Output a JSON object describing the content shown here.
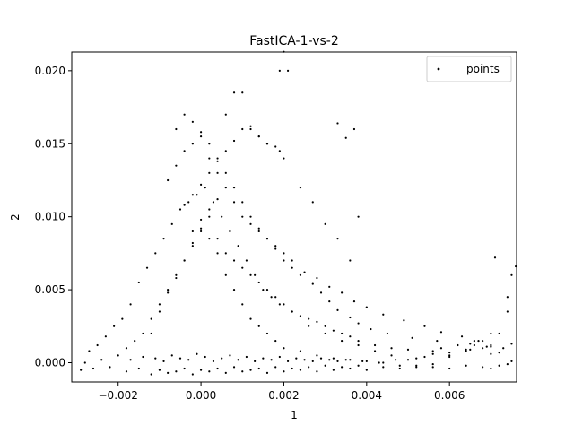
{
  "chart_data": {
    "type": "scatter",
    "title": "FastICA-1-vs-2",
    "xlabel": "1",
    "ylabel": "2",
    "xlim": [
      -0.00312,
      0.00762
    ],
    "ylim": [
      -0.00132,
      0.02128
    ],
    "xticks": [
      -0.002,
      0.0,
      0.002,
      0.004,
      0.006
    ],
    "xtick_labels": [
      "−0.002",
      "0.000",
      "0.002",
      "0.004",
      "0.006"
    ],
    "yticks": [
      0.0,
      0.005,
      0.01,
      0.015,
      0.02
    ],
    "ytick_labels": [
      "0.000",
      "0.005",
      "0.010",
      "0.015",
      "0.020"
    ],
    "legend": {
      "position": "top-right",
      "entries": [
        "points"
      ]
    },
    "grid": false,
    "marker_color": "#000000",
    "series": [
      {
        "name": "points",
        "x": [
          -0.0029,
          -0.0028,
          -0.0027,
          -0.0026,
          -0.0025,
          -0.0024,
          -0.0023,
          -0.0022,
          -0.0021,
          -0.002,
          -0.0019,
          -0.0018,
          -0.0017,
          -0.0016,
          -0.0015,
          -0.0014,
          -0.0013,
          -0.0012,
          -0.0011,
          -0.001,
          -0.0009,
          -0.0008,
          -0.0007,
          -0.0006,
          -0.0005,
          -0.0004,
          -0.0003,
          -0.0002,
          -0.0001,
          0.0,
          0.0001,
          0.0002,
          0.0003,
          0.0004,
          0.0005,
          0.0006,
          0.0007,
          0.0008,
          0.0009,
          0.001,
          0.0011,
          0.0012,
          0.0013,
          0.0014,
          0.0015,
          0.0016,
          0.0017,
          0.0018,
          0.0019,
          0.002,
          0.0022,
          0.0024,
          0.0026,
          0.0028,
          0.003,
          0.0032,
          0.0034,
          0.0036,
          0.0038,
          0.004,
          0.0042,
          0.0044,
          0.0046,
          0.0048,
          0.005,
          0.0052,
          0.0054,
          0.0056,
          0.0058,
          0.006,
          0.0062,
          0.0064,
          0.0066,
          0.0068,
          0.007,
          0.0072,
          0.0074,
          0.0075,
          -0.0018,
          -0.0015,
          -0.0012,
          -0.001,
          -0.0008,
          -0.0006,
          -0.0004,
          -0.0002,
          0.0,
          0.0002,
          0.0004,
          0.0006,
          0.0008,
          0.001,
          0.0012,
          0.0014,
          0.0016,
          0.0018,
          0.002,
          0.0022,
          0.0024,
          0.0026,
          0.0028,
          0.003,
          0.0032,
          0.0034,
          0.0036,
          0.0038,
          0.004,
          0.0044,
          0.0048,
          0.0052,
          0.0056,
          0.006,
          0.0064,
          0.0068,
          0.007,
          0.0072,
          0.0074,
          0.0075,
          -0.0017,
          -0.0014,
          -0.0011,
          -0.0009,
          -0.0007,
          -0.0005,
          -0.0003,
          -0.0001,
          0.0001,
          0.0003,
          0.0005,
          0.0007,
          0.0009,
          0.0011,
          0.0013,
          0.0015,
          0.0017,
          0.0019,
          0.0021,
          0.0023,
          0.0025,
          0.0027,
          0.0029,
          0.0031,
          0.0033,
          0.0035,
          0.0039,
          0.0043,
          0.0047,
          0.0052,
          0.0056,
          0.006,
          0.0065,
          0.0069,
          0.0072,
          0.0075,
          -0.0012,
          -0.001,
          -0.0008,
          -0.0006,
          -0.0004,
          -0.0002,
          0.0,
          0.0002,
          0.0004,
          0.0006,
          0.0008,
          0.001,
          0.0012,
          0.0014,
          0.0016,
          0.0018,
          0.002,
          0.0022,
          0.0024,
          0.0026,
          0.0028,
          0.003,
          0.0032,
          0.0034,
          0.0036,
          0.0038,
          0.0042,
          0.0046,
          0.005,
          0.0056,
          0.006,
          0.0064,
          0.0066,
          0.0068,
          0.007,
          0.0074,
          -0.0008,
          -0.0006,
          -0.0004,
          -0.0002,
          0.0,
          0.0002,
          0.0004,
          0.0006,
          0.0008,
          0.001,
          0.0012,
          0.0014,
          0.0016,
          0.0018,
          0.002,
          0.0022,
          0.0025,
          0.0028,
          0.0031,
          0.0034,
          0.0037,
          0.004,
          0.0044,
          0.0049,
          0.0054,
          0.0058,
          0.0063,
          0.0067,
          0.007,
          0.0073,
          -0.0006,
          -0.0004,
          -0.0002,
          0.0,
          0.0002,
          0.0004,
          0.0006,
          0.0008,
          0.001,
          0.0012,
          0.0014,
          0.0016,
          0.0018,
          0.002,
          0.0022,
          0.0024,
          0.0027,
          0.0029,
          0.0031,
          0.0033,
          0.0036,
          0.0038,
          0.0041,
          0.0045,
          0.0051,
          0.0057,
          0.0065,
          0.007,
          0.0071,
          0.0076,
          -0.0004,
          -0.0002,
          0.0,
          0.0002,
          0.0004,
          0.0006,
          0.0008,
          0.001,
          0.0012,
          0.0014,
          0.0016,
          0.0018,
          0.0019,
          0.002,
          0.0024,
          0.0027,
          0.003,
          0.0033,
          0.0036,
          0.0038,
          -0.0002,
          0.0,
          0.0002,
          0.0004,
          0.0006,
          0.0008,
          0.001,
          0.0012,
          0.0014,
          0.0016,
          0.0019,
          0.002,
          0.0021,
          0.0033,
          0.0035,
          0.0037
        ],
        "y": [
          -0.0005,
          0.0,
          0.0008,
          -0.0004,
          0.0012,
          0.0002,
          0.0018,
          -0.0003,
          0.0025,
          0.0005,
          0.003,
          0.001,
          0.004,
          0.0015,
          0.0055,
          0.002,
          0.0065,
          0.003,
          0.0075,
          0.004,
          0.0085,
          0.005,
          0.0095,
          0.006,
          0.0105,
          0.007,
          0.011,
          0.008,
          0.0115,
          0.009,
          0.012,
          0.0085,
          0.011,
          0.0075,
          0.01,
          0.006,
          0.009,
          0.005,
          0.008,
          0.004,
          0.007,
          0.003,
          0.006,
          0.0025,
          0.005,
          0.002,
          0.0045,
          0.0015,
          0.004,
          0.001,
          0.0035,
          0.0008,
          0.0025,
          0.0005,
          0.002,
          0.0003,
          0.0015,
          0.0002,
          0.0012,
          0.0001,
          0.0008,
          0.0,
          0.0005,
          -0.0002,
          0.0002,
          -0.0003,
          0.0004,
          -0.0001,
          0.001,
          0.0005,
          0.0012,
          0.0008,
          0.0015,
          0.001,
          0.0006,
          0.002,
          0.0035,
          0.006,
          -0.0006,
          -0.0004,
          -0.0008,
          -0.0005,
          -0.0007,
          -0.0006,
          -0.0004,
          -0.0008,
          -0.0005,
          -0.0006,
          -0.0004,
          -0.0007,
          -0.0003,
          -0.0006,
          -0.0005,
          -0.0004,
          -0.0007,
          -0.0003,
          -0.0006,
          -0.0004,
          -0.0005,
          -0.0003,
          -0.0006,
          -0.0002,
          -0.0005,
          -0.0003,
          -0.0004,
          -0.0002,
          -0.0005,
          -0.0003,
          -0.0004,
          -0.0002,
          -0.0003,
          -0.0004,
          -0.0002,
          -0.0003,
          -0.0004,
          -0.0002,
          -0.0001,
          0.0001,
          0.0002,
          0.0004,
          0.0003,
          0.0001,
          0.0005,
          0.0003,
          0.0002,
          0.0006,
          0.0004,
          0.0001,
          0.0003,
          0.0005,
          0.0002,
          0.0004,
          0.0001,
          0.0003,
          0.0002,
          0.0004,
          0.0001,
          0.0003,
          0.0002,
          0.0001,
          0.0003,
          0.0002,
          0.0001,
          0.0002,
          0.0001,
          0.0,
          0.0002,
          0.0003,
          0.0006,
          0.0004,
          0.0009,
          0.0011,
          0.0007,
          0.0013,
          0.002,
          0.0035,
          0.0048,
          0.0058,
          0.007,
          0.0082,
          0.0092,
          0.01,
          0.0085,
          0.0075,
          0.007,
          0.0065,
          0.006,
          0.0055,
          0.005,
          0.0045,
          0.004,
          0.0035,
          0.0032,
          0.003,
          0.0028,
          0.0025,
          0.0022,
          0.002,
          0.0018,
          0.0015,
          0.0012,
          0.001,
          0.0009,
          0.0008,
          0.0007,
          0.0009,
          0.0012,
          0.0015,
          0.002,
          0.0045,
          0.0125,
          0.0135,
          0.0145,
          0.015,
          0.0155,
          0.014,
          0.013,
          0.012,
          0.011,
          0.01,
          0.0095,
          0.009,
          0.0085,
          0.008,
          0.0075,
          0.007,
          0.0062,
          0.0058,
          0.0052,
          0.0048,
          0.0042,
          0.0038,
          0.0033,
          0.0029,
          0.0025,
          0.0021,
          0.0018,
          0.0015,
          0.0012,
          0.001,
          0.016,
          0.017,
          0.0165,
          0.0158,
          0.015,
          0.014,
          0.013,
          0.012,
          0.011,
          0.01,
          0.0092,
          0.0085,
          0.0078,
          0.007,
          0.0065,
          0.006,
          0.0054,
          0.0048,
          0.0042,
          0.0036,
          0.0031,
          0.0027,
          0.0023,
          0.002,
          0.0017,
          0.0015,
          0.0013,
          0.0011,
          0.0072,
          0.0066,
          0.0108,
          0.0115,
          0.0122,
          0.013,
          0.0138,
          0.0145,
          0.0152,
          0.016,
          0.0162,
          0.0155,
          0.015,
          0.0148,
          0.0145,
          0.014,
          0.012,
          0.011,
          0.0095,
          0.0085,
          0.007,
          0.01,
          0.009,
          0.0098,
          0.0105,
          0.0112,
          0.017,
          0.0185,
          0.0185,
          0.016,
          0.0155,
          0.015,
          0.02,
          0.0213,
          0.02,
          0.0164,
          0.0154,
          0.016
        ]
      }
    ]
  }
}
